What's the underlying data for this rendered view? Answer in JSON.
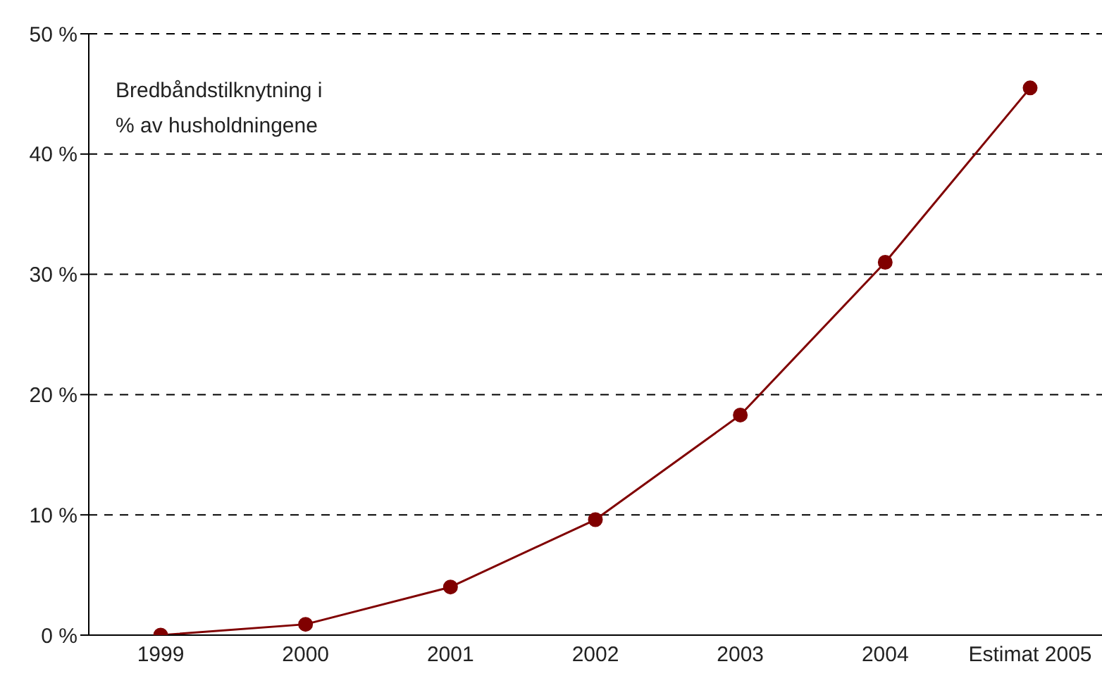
{
  "chart_data": {
    "type": "line",
    "categories": [
      "1999",
      "2000",
      "2001",
      "2002",
      "2003",
      "2004",
      "Estimat 2005"
    ],
    "series": [
      {
        "color": "#800000",
        "values": [
          0,
          0.9,
          4.0,
          9.6,
          18.3,
          31.0,
          45.5
        ]
      }
    ],
    "ylim": [
      0,
      50
    ],
    "yticks": [
      {
        "value": 0,
        "label": "0 %"
      },
      {
        "value": 10,
        "label": "10 %"
      },
      {
        "value": 20,
        "label": "20 %"
      },
      {
        "value": 30,
        "label": "30 %"
      },
      {
        "value": 40,
        "label": "40 %"
      },
      {
        "value": 50,
        "label": "50 %"
      }
    ],
    "grid": "y",
    "marker": "circle",
    "annotations": [
      "Bredbåndstilknytning i\n% av husholdningene"
    ]
  }
}
